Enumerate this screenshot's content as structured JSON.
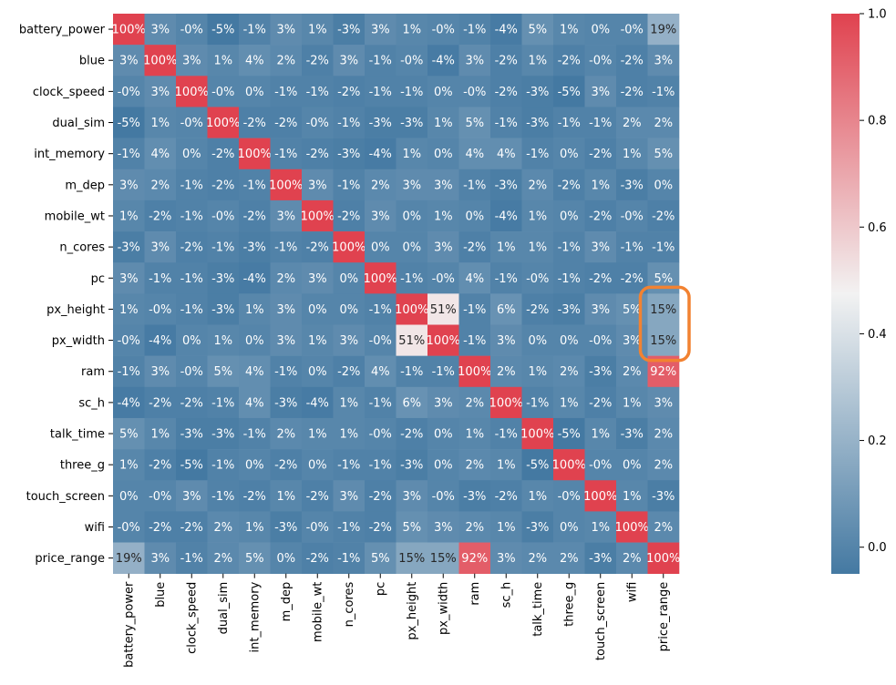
{
  "chart_data": {
    "type": "heatmap",
    "title": "",
    "xlabel": "",
    "ylabel": "",
    "variables": [
      "battery_power",
      "blue",
      "clock_speed",
      "dual_sim",
      "int_memory",
      "m_dep",
      "mobile_wt",
      "n_cores",
      "pc",
      "px_height",
      "px_width",
      "ram",
      "sc_h",
      "talk_time",
      "three_g",
      "touch_screen",
      "wifi",
      "price_range"
    ],
    "values": [
      [
        1.0,
        0.03,
        -0.0,
        -0.05,
        -0.01,
        0.03,
        0.01,
        -0.03,
        0.03,
        0.01,
        -0.0,
        -0.01,
        -0.04,
        0.05,
        0.01,
        0.0,
        -0.0,
        0.19
      ],
      [
        0.03,
        1.0,
        0.03,
        0.01,
        0.04,
        0.02,
        -0.02,
        0.03,
        -0.01,
        -0.0,
        -0.04,
        0.03,
        -0.02,
        0.01,
        -0.02,
        -0.0,
        -0.02,
        0.03
      ],
      [
        -0.0,
        0.03,
        1.0,
        -0.0,
        0.0,
        -0.01,
        -0.01,
        -0.02,
        -0.01,
        -0.01,
        0.0,
        -0.0,
        -0.02,
        -0.03,
        -0.05,
        0.03,
        -0.02,
        -0.01
      ],
      [
        -0.05,
        0.01,
        -0.0,
        1.0,
        -0.02,
        -0.02,
        -0.0,
        -0.01,
        -0.03,
        -0.03,
        0.01,
        0.05,
        -0.01,
        -0.03,
        -0.01,
        -0.01,
        0.02,
        0.02
      ],
      [
        -0.01,
        0.04,
        0.0,
        -0.02,
        1.0,
        -0.01,
        -0.02,
        -0.03,
        -0.04,
        0.01,
        0.0,
        0.04,
        0.04,
        -0.01,
        0.0,
        -0.02,
        0.01,
        0.05
      ],
      [
        0.03,
        0.02,
        -0.01,
        -0.02,
        -0.01,
        1.0,
        0.03,
        -0.01,
        0.02,
        0.03,
        0.03,
        -0.01,
        -0.03,
        0.02,
        -0.02,
        0.01,
        -0.03,
        0.0
      ],
      [
        0.01,
        -0.02,
        -0.01,
        -0.0,
        -0.02,
        0.03,
        1.0,
        -0.02,
        0.03,
        0.0,
        0.01,
        0.0,
        -0.04,
        0.01,
        0.0,
        -0.02,
        -0.0,
        -0.02
      ],
      [
        -0.03,
        0.03,
        -0.02,
        -0.01,
        -0.03,
        -0.01,
        -0.02,
        1.0,
        0.0,
        0.0,
        0.03,
        -0.02,
        0.01,
        0.01,
        -0.01,
        0.03,
        -0.01,
        -0.01
      ],
      [
        0.03,
        -0.01,
        -0.01,
        -0.03,
        -0.04,
        0.02,
        0.03,
        0.0,
        1.0,
        -0.01,
        -0.0,
        0.04,
        -0.01,
        -0.0,
        -0.01,
        -0.02,
        -0.02,
        0.05
      ],
      [
        0.01,
        -0.0,
        -0.01,
        -0.03,
        0.01,
        0.03,
        0.0,
        0.0,
        -0.01,
        1.0,
        0.51,
        -0.01,
        0.06,
        -0.02,
        -0.03,
        0.03,
        0.05,
        0.15
      ],
      [
        -0.0,
        -0.04,
        0.0,
        0.01,
        0.0,
        0.03,
        0.01,
        0.03,
        -0.0,
        0.51,
        1.0,
        -0.01,
        0.03,
        0.0,
        0.0,
        -0.0,
        0.03,
        0.15
      ],
      [
        -0.01,
        0.03,
        -0.0,
        0.05,
        0.04,
        -0.01,
        0.0,
        -0.02,
        0.04,
        -0.01,
        -0.01,
        1.0,
        0.02,
        0.01,
        0.02,
        -0.03,
        0.02,
        0.92
      ],
      [
        -0.04,
        -0.02,
        -0.02,
        -0.01,
        0.04,
        -0.03,
        -0.04,
        0.01,
        -0.01,
        0.06,
        0.03,
        0.02,
        1.0,
        -0.01,
        0.01,
        -0.02,
        0.01,
        0.03
      ],
      [
        0.05,
        0.01,
        -0.03,
        -0.03,
        -0.01,
        0.02,
        0.01,
        0.01,
        -0.0,
        -0.02,
        0.0,
        0.01,
        -0.01,
        1.0,
        -0.05,
        0.01,
        -0.03,
        0.02
      ],
      [
        0.01,
        -0.02,
        -0.05,
        -0.01,
        0.0,
        -0.02,
        0.0,
        -0.01,
        -0.01,
        -0.03,
        0.0,
        0.02,
        0.01,
        -0.05,
        1.0,
        -0.0,
        0.0,
        0.02
      ],
      [
        0.0,
        -0.0,
        0.03,
        -0.01,
        -0.02,
        0.01,
        -0.02,
        0.03,
        -0.02,
        0.03,
        -0.0,
        -0.03,
        -0.02,
        0.01,
        -0.0,
        1.0,
        0.01,
        -0.03
      ],
      [
        -0.0,
        -0.02,
        -0.02,
        0.02,
        0.01,
        -0.03,
        -0.0,
        -0.01,
        -0.02,
        0.05,
        0.03,
        0.02,
        0.01,
        -0.03,
        0.0,
        0.01,
        1.0,
        0.02
      ],
      [
        0.19,
        0.03,
        -0.01,
        0.02,
        0.05,
        0.0,
        -0.02,
        -0.01,
        0.05,
        0.15,
        0.15,
        0.92,
        0.03,
        0.02,
        0.02,
        -0.03,
        0.02,
        1.0
      ]
    ],
    "value_format": "percent_0dp",
    "vmin": -0.05,
    "vmax": 1.0,
    "colormap": {
      "low": "#4479a2",
      "mid": "#f2f2f2",
      "high": "#e0424f"
    },
    "colorbar": {
      "ticks": [
        0.0,
        0.2,
        0.4,
        0.6,
        0.8,
        1.0
      ],
      "tick_labels": [
        "0.0",
        "0.2",
        "0.4",
        "0.6",
        "0.8",
        "1.0"
      ],
      "placement": "right"
    },
    "highlight": {
      "rows": [
        "px_height",
        "px_width"
      ],
      "column": "price_range",
      "color": "#f28231"
    },
    "grid": false,
    "legend": "none"
  }
}
